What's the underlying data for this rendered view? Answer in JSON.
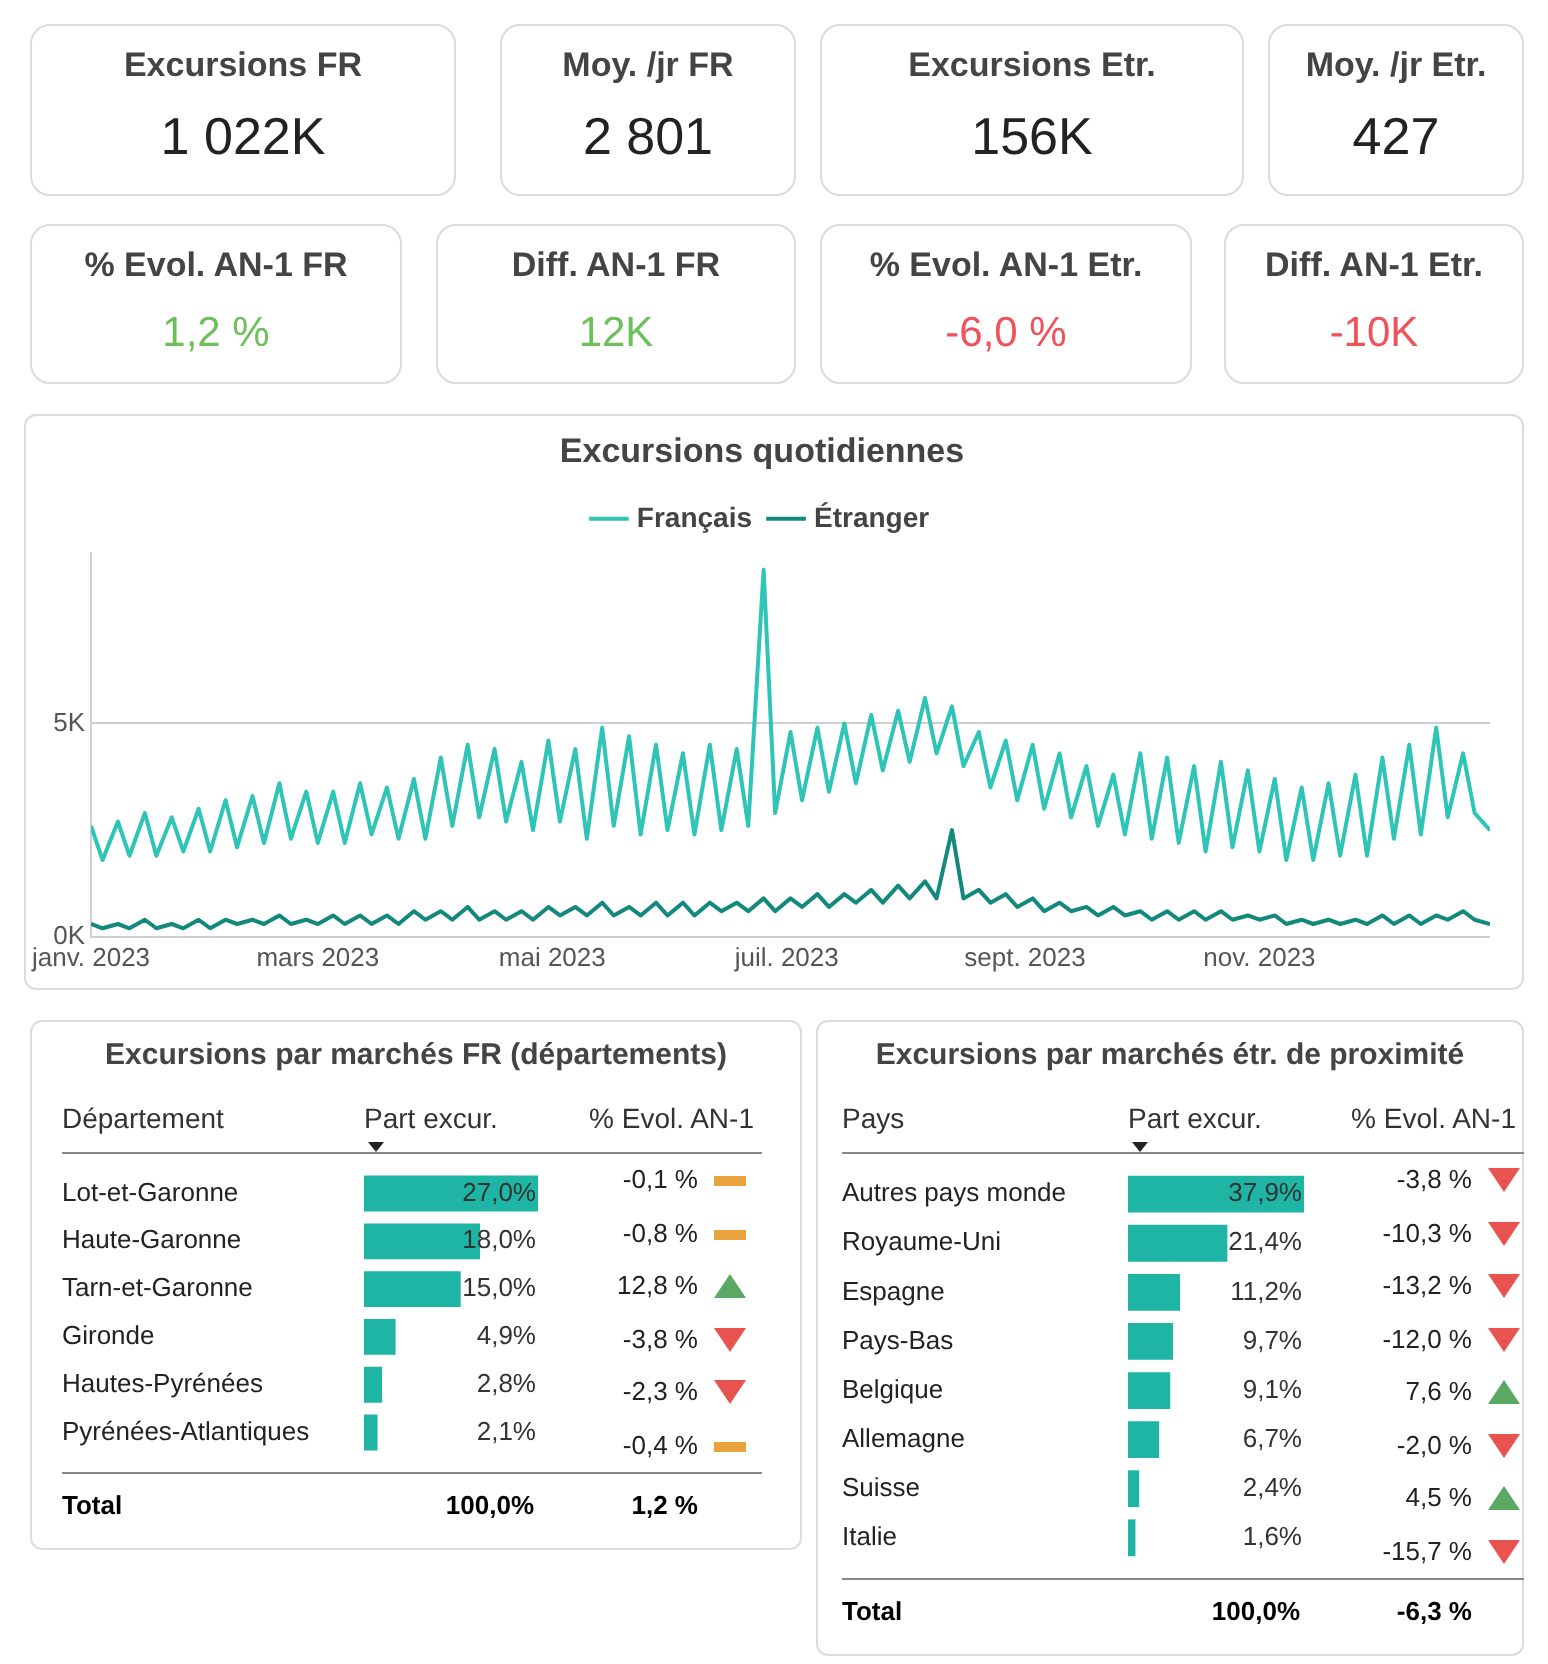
{
  "chart_data": [
    {
      "type": "other",
      "annotations": [
        "Excursions FR",
        "1 022K",
        "Moy. /jr FR",
        "2 801",
        "Excursions Etr.",
        "156K",
        "Moy. /jr Etr.",
        "427",
        "% Evol. AN-1 FR",
        "1,2 %",
        "Diff. AN-1 FR",
        "12K",
        "% Evol. AN-1 Etr.",
        "-6,0 %",
        "Diff. AN-1 Etr.",
        "-10K"
      ],
      "colors": [
        null,
        null,
        null,
        null,
        null,
        null,
        null,
        null,
        null,
        "#6cbf5a",
        null,
        "#6cbf5a",
        null,
        "#f0525c",
        null,
        "#f0525c"
      ]
    },
    {
      "type": "line",
      "title": "Excursions quotidiennes",
      "legend": "top",
      "grid": "y",
      "x": [
        "2023-01-01",
        "2023-01-04",
        "2023-01-08",
        "2023-01-11",
        "2023-01-15",
        "2023-01-18",
        "2023-01-22",
        "2023-01-25",
        "2023-01-29",
        "2023-02-01",
        "2023-02-05",
        "2023-02-08",
        "2023-02-12",
        "2023-02-15",
        "2023-02-19",
        "2023-02-22",
        "2023-02-26",
        "2023-03-01",
        "2023-03-05",
        "2023-03-08",
        "2023-03-12",
        "2023-03-15",
        "2023-03-19",
        "2023-03-22",
        "2023-03-26",
        "2023-03-29",
        "2023-04-02",
        "2023-04-05",
        "2023-04-09",
        "2023-04-12",
        "2023-04-16",
        "2023-04-19",
        "2023-04-23",
        "2023-04-26",
        "2023-04-30",
        "2023-05-03",
        "2023-05-07",
        "2023-05-10",
        "2023-05-14",
        "2023-05-17",
        "2023-05-21",
        "2023-05-24",
        "2023-05-28",
        "2023-05-31",
        "2023-06-04",
        "2023-06-07",
        "2023-06-11",
        "2023-06-14",
        "2023-06-18",
        "2023-06-21",
        "2023-06-25",
        "2023-06-28",
        "2023-07-02",
        "2023-07-05",
        "2023-07-09",
        "2023-07-12",
        "2023-07-16",
        "2023-07-19",
        "2023-07-23",
        "2023-07-26",
        "2023-07-30",
        "2023-08-02",
        "2023-08-06",
        "2023-08-09",
        "2023-08-13",
        "2023-08-16",
        "2023-08-20",
        "2023-08-23",
        "2023-08-27",
        "2023-08-30",
        "2023-09-03",
        "2023-09-06",
        "2023-09-10",
        "2023-09-13",
        "2023-09-17",
        "2023-09-20",
        "2023-09-24",
        "2023-09-27",
        "2023-10-01",
        "2023-10-04",
        "2023-10-08",
        "2023-10-11",
        "2023-10-15",
        "2023-10-18",
        "2023-10-22",
        "2023-10-25",
        "2023-10-29",
        "2023-11-01",
        "2023-11-05",
        "2023-11-08",
        "2023-11-12",
        "2023-11-15",
        "2023-11-19",
        "2023-11-22",
        "2023-11-26",
        "2023-11-29",
        "2023-12-03",
        "2023-12-06",
        "2023-12-10",
        "2023-12-13",
        "2023-12-17",
        "2023-12-20",
        "2023-12-24",
        "2023-12-27",
        "2023-12-31"
      ],
      "xlim": [
        "2023-01-01",
        "2023-12-31"
      ],
      "xticks": [
        {
          "value": "2023-01-01",
          "label": "janv. 2023"
        },
        {
          "value": "2023-03-01",
          "label": "mars 2023"
        },
        {
          "value": "2023-05-01",
          "label": "mai 2023"
        },
        {
          "value": "2023-07-01",
          "label": "juil. 2023"
        },
        {
          "value": "2023-09-01",
          "label": "sept. 2023"
        },
        {
          "value": "2023-11-01",
          "label": "nov. 2023"
        }
      ],
      "ylim": [
        0,
        9
      ],
      "yticks": [
        {
          "value": 0,
          "label": "0K"
        },
        {
          "value": 5,
          "label": "5K"
        }
      ],
      "series": [
        {
          "name": "Français",
          "color": "#2ec4b6",
          "values": [
            2.6,
            1.8,
            2.7,
            1.9,
            2.9,
            1.9,
            2.8,
            2.0,
            3.0,
            2.0,
            3.2,
            2.1,
            3.3,
            2.2,
            3.6,
            2.3,
            3.4,
            2.2,
            3.4,
            2.2,
            3.6,
            2.4,
            3.5,
            2.3,
            3.7,
            2.3,
            4.2,
            2.6,
            4.5,
            2.8,
            4.4,
            2.7,
            4.1,
            2.5,
            4.6,
            2.7,
            4.4,
            2.3,
            4.9,
            2.6,
            4.7,
            2.4,
            4.5,
            2.5,
            4.3,
            2.4,
            4.5,
            2.5,
            4.4,
            2.6,
            8.6,
            2.9,
            4.8,
            3.2,
            4.9,
            3.4,
            5.0,
            3.6,
            5.2,
            3.9,
            5.3,
            4.1,
            5.6,
            4.3,
            5.4,
            4.0,
            4.8,
            3.5,
            4.6,
            3.2,
            4.5,
            3.0,
            4.3,
            2.8,
            4.0,
            2.6,
            3.8,
            2.4,
            4.3,
            2.3,
            4.2,
            2.2,
            4.0,
            2.0,
            4.1,
            2.1,
            3.9,
            2.0,
            3.7,
            1.8,
            3.5,
            1.8,
            3.6,
            1.9,
            3.8,
            1.9,
            4.2,
            2.3,
            4.5,
            2.4,
            4.9,
            2.8,
            4.3,
            2.9,
            2.5
          ]
        },
        {
          "name": "Étranger",
          "color": "#13887c",
          "values": [
            0.3,
            0.2,
            0.3,
            0.2,
            0.4,
            0.2,
            0.3,
            0.2,
            0.4,
            0.2,
            0.4,
            0.3,
            0.4,
            0.3,
            0.5,
            0.3,
            0.4,
            0.3,
            0.5,
            0.3,
            0.5,
            0.3,
            0.5,
            0.3,
            0.6,
            0.4,
            0.6,
            0.4,
            0.7,
            0.4,
            0.6,
            0.4,
            0.6,
            0.4,
            0.7,
            0.5,
            0.7,
            0.5,
            0.8,
            0.5,
            0.7,
            0.5,
            0.8,
            0.5,
            0.8,
            0.5,
            0.8,
            0.6,
            0.8,
            0.6,
            0.9,
            0.6,
            0.9,
            0.7,
            1.0,
            0.7,
            1.0,
            0.8,
            1.1,
            0.8,
            1.2,
            0.9,
            1.3,
            0.9,
            2.5,
            0.9,
            1.1,
            0.8,
            1.0,
            0.7,
            0.9,
            0.6,
            0.8,
            0.6,
            0.7,
            0.5,
            0.7,
            0.5,
            0.6,
            0.4,
            0.6,
            0.4,
            0.6,
            0.4,
            0.6,
            0.4,
            0.5,
            0.4,
            0.5,
            0.3,
            0.4,
            0.3,
            0.4,
            0.3,
            0.4,
            0.3,
            0.5,
            0.3,
            0.5,
            0.3,
            0.5,
            0.4,
            0.6,
            0.4,
            0.3
          ]
        }
      ]
    },
    {
      "type": "bar",
      "orientation": "horizontal",
      "title": "Excursions par marchés FR (départements)",
      "tick_labels": "y",
      "color": "#1fb5a5",
      "categories": [
        "Lot-et-Garonne",
        "Haute-Garonne",
        "Tarn-et-Garonne",
        "Gironde",
        "Hautes-Pyrénées",
        "Pyrénées-Atlantiques"
      ],
      "values": [
        27.0,
        18.0,
        15.0,
        4.9,
        2.8,
        2.1
      ],
      "value_labels": [
        "27,0%",
        "18,0%",
        "15,0%",
        "4,9%",
        "2,8%",
        "2,1%"
      ],
      "annotations": [
        "Département",
        "Part excur.",
        "% Evol. AN-1",
        "-0,1 %",
        "-0,8 %",
        "12,8 %",
        "-3,8 %",
        "-2,3 %",
        "-0,4 %",
        "Total",
        "100,0%",
        "1,2 %"
      ]
    },
    {
      "type": "bar",
      "orientation": "horizontal",
      "title": "Excursions par marchés étr. de proximité",
      "tick_labels": "y",
      "color": "#1fb5a5",
      "categories": [
        "Autres pays monde",
        "Royaume-Uni",
        "Espagne",
        "Pays-Bas",
        "Belgique",
        "Allemagne",
        "Suisse",
        "Italie"
      ],
      "values": [
        37.9,
        21.4,
        11.2,
        9.7,
        9.1,
        6.7,
        2.4,
        1.6
      ],
      "value_labels": [
        "37,9%",
        "21,4%",
        "11,2%",
        "9,7%",
        "9,1%",
        "6,7%",
        "2,4%",
        "1,6%"
      ],
      "annotations": [
        "Pays",
        "Part excur.",
        "% Evol. AN-1",
        "-3,8 %",
        "-10,3 %",
        "-13,2 %",
        "-12,0 %",
        "7,6 %",
        "-2,0 %",
        "4,5 %",
        "-15,7 %",
        "Total",
        "100,0%",
        "-6,3 %"
      ]
    }
  ]
}
